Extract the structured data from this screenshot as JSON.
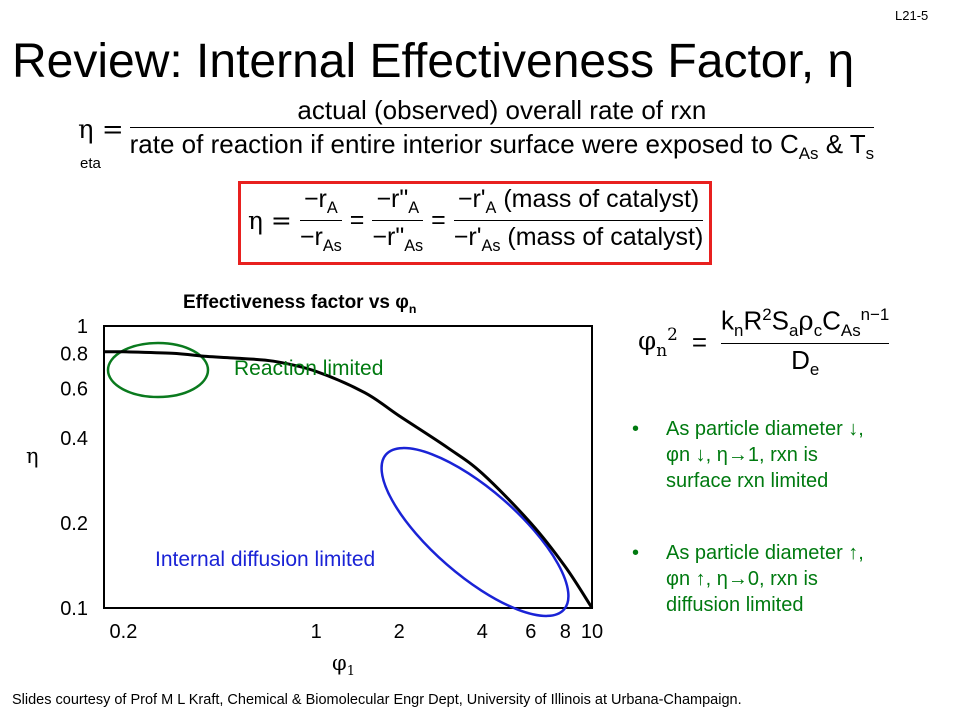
{
  "slide_id": "L21-5",
  "title": "Review: Internal Effectiveness Factor, η",
  "definition": {
    "lhs": "η =",
    "numerator": "actual (observed) overall rate of rxn",
    "denominator_main": "rate of reaction if entire interior surface were exposed to C",
    "denominator_sub1": "As",
    "denominator_mid": " & T",
    "denominator_sub2": "s",
    "eta_label": "eta"
  },
  "equation2": {
    "lhs": "η =",
    "f1_num": "−r",
    "f1_num_sub": "A",
    "f1_den": "−r",
    "f1_den_sub": "As",
    "f2_num": "−r\"",
    "f2_num_sub": "A",
    "f2_den": "−r\"",
    "f2_den_sub": "As",
    "f3_num": "−r'",
    "f3_num_sub": "A",
    "f3_num_tail": " (mass of catalyst)",
    "f3_den": "−r'",
    "f3_den_sub": "As",
    "f3_den_tail": " (mass of catalyst)",
    "eq": "="
  },
  "phi_equation": {
    "lhs": "φ",
    "lhs_sub": "n",
    "lhs_sup": "2",
    "eq": "=",
    "num": "k",
    "num_sub": "n",
    "num_r": "R",
    "num_r_sup": "2",
    "num_s": "S",
    "num_s_sub": "a",
    "num_rho": "ρ",
    "num_rho_sub": "c",
    "num_c": "C",
    "num_c_sub": "As",
    "num_c_sup": "n−1",
    "den": "D",
    "den_sub": "e"
  },
  "bullets": [
    {
      "dot": "•",
      "line1": "As particle diameter ↓,",
      "line2": "φn ↓, η→1, rxn is",
      "line3": "surface rxn limited"
    },
    {
      "dot": "•",
      "line1": "As particle diameter ↑,",
      "line2": "φn ↑, η→0, rxn is",
      "line3": "diffusion limited"
    }
  ],
  "credit": "Slides courtesy of Prof M L Kraft, Chemical & Biomolecular Engr Dept, University of Illinois at Urbana-Champaign.",
  "colors": {
    "red_box": "#e8201f",
    "green": "#007a10",
    "blue": "#1a23d6",
    "green_ellipse": "#0a7a1e"
  },
  "chart_data": {
    "type": "line",
    "title": "Effectiveness factor vs φn",
    "xlabel": "φ1",
    "ylabel": "η",
    "x_scale": "log",
    "y_scale": "log",
    "x_ticks": [
      "0.2",
      "1",
      "2",
      "4",
      "6",
      "8",
      "10"
    ],
    "x_tick_values": [
      0.2,
      1,
      2,
      4,
      6,
      8,
      10
    ],
    "y_ticks": [
      "1",
      "0.8",
      "0.6",
      "0.4",
      "0.2",
      "0.1"
    ],
    "y_tick_values": [
      1,
      0.8,
      0.6,
      0.4,
      0.2,
      0.1
    ],
    "xlim": [
      0.17,
      10
    ],
    "ylim": [
      0.1,
      1
    ],
    "series": [
      {
        "x": [
          0.17,
          0.2,
          0.3,
          0.4,
          0.5,
          0.7,
          1.0,
          1.5,
          2.0,
          3.0,
          4.0,
          6.0,
          8.0,
          10.0
        ],
        "values": [
          0.81,
          0.81,
          0.8,
          0.78,
          0.77,
          0.75,
          0.69,
          0.58,
          0.48,
          0.37,
          0.3,
          0.2,
          0.14,
          0.1
        ]
      }
    ],
    "annotations": [
      {
        "text": "Reaction limited",
        "color": "#007a10"
      },
      {
        "text": "Internal diffusion limited",
        "color": "#1a23d6"
      }
    ]
  }
}
